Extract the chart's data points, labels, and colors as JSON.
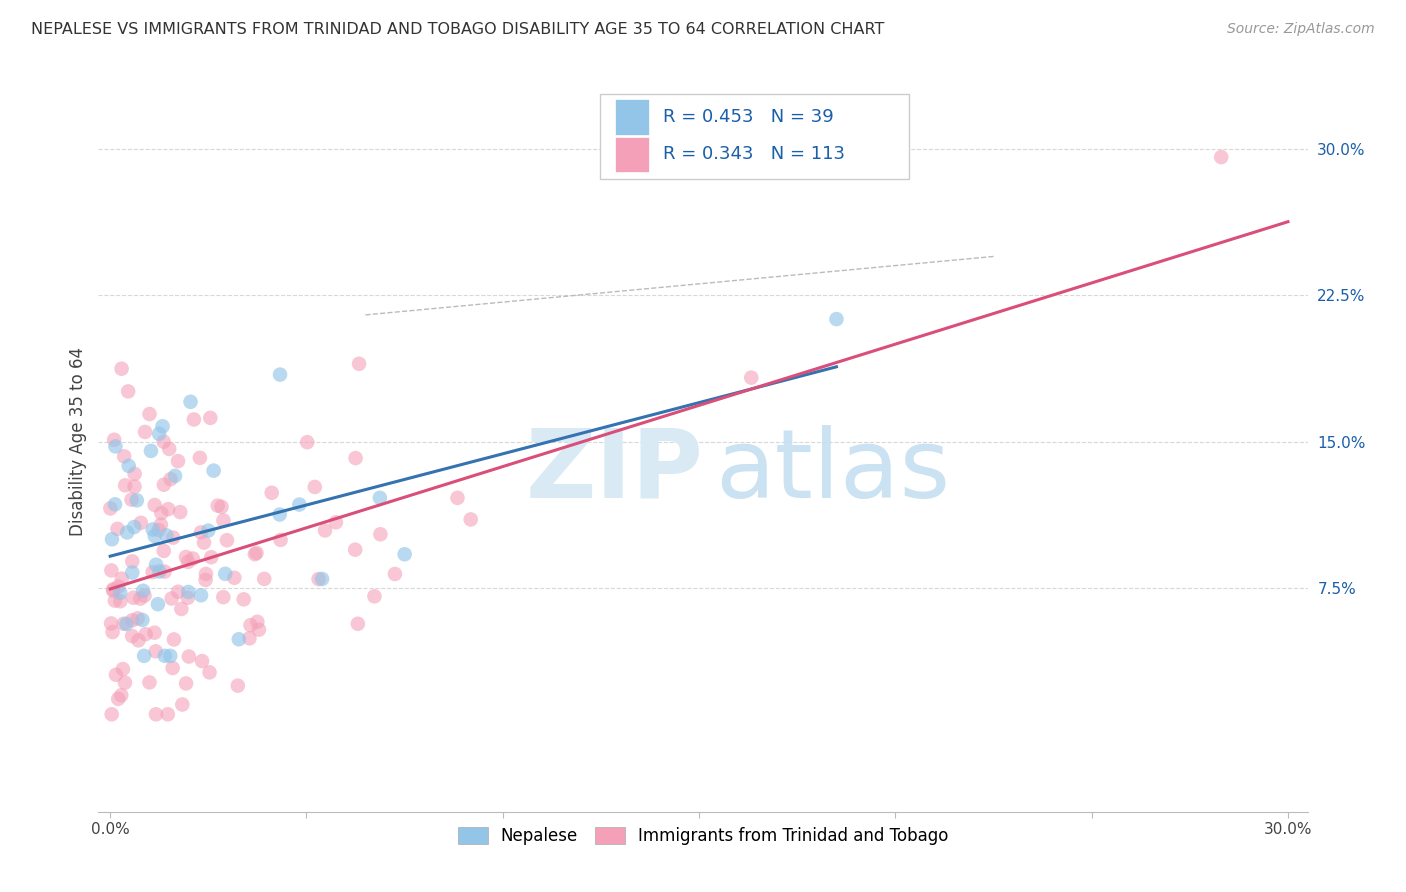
{
  "title": "NEPALESE VS IMMIGRANTS FROM TRINIDAD AND TOBAGO DISABILITY AGE 35 TO 64 CORRELATION CHART",
  "source": "Source: ZipAtlas.com",
  "ylabel": "Disability Age 35 to 64",
  "xlim": [
    -0.003,
    0.305
  ],
  "ylim": [
    -0.04,
    0.34
  ],
  "xticks": [
    0.0,
    0.05,
    0.1,
    0.15,
    0.2,
    0.25,
    0.3
  ],
  "xtick_labels": [
    "0.0%",
    "",
    "",
    "",
    "",
    "",
    "30.0%"
  ],
  "ytick_positions": [
    0.075,
    0.15,
    0.225,
    0.3
  ],
  "ytick_labels": [
    "7.5%",
    "15.0%",
    "22.5%",
    "30.0%"
  ],
  "background_color": "#ffffff",
  "grid_color": "#d8d8d8",
  "nepalese_color": "#92c5e8",
  "trinidad_color": "#f4a0b8",
  "nepalese_line_color": "#3572b0",
  "trinidad_line_color": "#d94f7a",
  "nepalese_R": 0.453,
  "nepalese_N": 39,
  "trinidad_R": 0.343,
  "trinidad_N": 113,
  "text_color": "#1a5fa8",
  "title_color": "#333333",
  "source_color": "#999999",
  "watermark_zip_color": "#daeaf5",
  "watermark_atlas_color": "#c5dff0"
}
